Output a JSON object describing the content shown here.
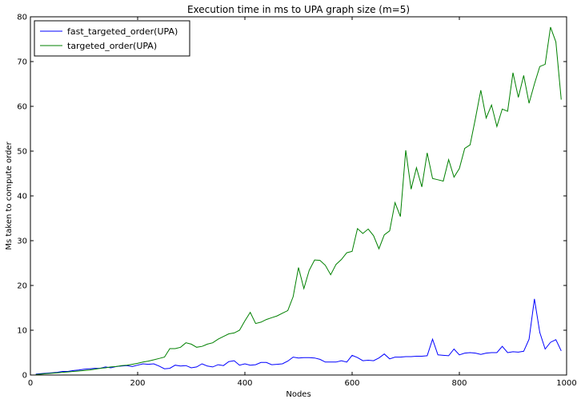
{
  "chart_data": {
    "type": "line",
    "title": "Execution time in ms to UPA graph size (m=5)",
    "xlabel": "Nodes",
    "ylabel": "Ms taken to compute order",
    "xlim": [
      0,
      1000
    ],
    "ylim": [
      0,
      80
    ],
    "xticks": [
      0,
      200,
      400,
      600,
      800,
      1000
    ],
    "yticks": [
      0,
      10,
      20,
      30,
      40,
      50,
      60,
      70,
      80
    ],
    "grid": false,
    "legend_position": "top-left",
    "x": [
      10,
      20,
      30,
      40,
      50,
      60,
      70,
      80,
      90,
      100,
      110,
      120,
      130,
      140,
      150,
      160,
      170,
      180,
      190,
      200,
      210,
      220,
      230,
      240,
      250,
      260,
      270,
      280,
      290,
      300,
      310,
      320,
      330,
      340,
      350,
      360,
      370,
      380,
      390,
      400,
      410,
      420,
      430,
      440,
      450,
      460,
      470,
      480,
      490,
      500,
      510,
      520,
      530,
      540,
      550,
      560,
      570,
      580,
      590,
      600,
      610,
      620,
      630,
      640,
      650,
      660,
      670,
      680,
      690,
      700,
      710,
      720,
      730,
      740,
      750,
      760,
      770,
      780,
      790,
      800,
      810,
      820,
      830,
      840,
      850,
      860,
      870,
      880,
      890,
      900,
      910,
      920,
      930,
      940,
      950,
      960,
      970,
      980,
      990
    ],
    "series": [
      {
        "name": "fast_targeted_order(UPA)",
        "color": "#0000ff",
        "values": [
          0.2,
          0.3,
          0.4,
          0.5,
          0.6,
          0.8,
          0.8,
          1.0,
          1.1,
          1.3,
          1.4,
          1.5,
          1.5,
          1.8,
          1.6,
          1.9,
          2.0,
          2.1,
          1.9,
          2.2,
          2.5,
          2.4,
          2.5,
          2.0,
          1.4,
          1.5,
          2.2,
          2.0,
          2.1,
          1.6,
          1.8,
          2.5,
          2.0,
          1.8,
          2.3,
          2.1,
          3.0,
          3.2,
          2.2,
          2.5,
          2.2,
          2.3,
          2.8,
          2.8,
          2.3,
          2.4,
          2.5,
          3.1,
          4.0,
          3.8,
          3.9,
          3.9,
          3.8,
          3.5,
          2.9,
          2.9,
          2.9,
          3.2,
          2.9,
          4.4,
          3.9,
          3.2,
          3.3,
          3.2,
          3.8,
          4.7,
          3.6,
          4.0,
          4.0,
          4.1,
          4.1,
          4.2,
          4.2,
          4.3,
          8.0,
          4.5,
          4.4,
          4.3,
          5.8,
          4.5,
          4.9,
          5.0,
          4.9,
          4.6,
          4.9,
          5.0,
          5.0,
          6.4,
          5.0,
          5.2,
          5.1,
          5.3,
          8.0,
          17.0,
          9.5,
          5.8,
          7.3,
          7.9,
          5.4
        ]
      },
      {
        "name": "targeted_order(UPA)",
        "color": "#008000",
        "values": [
          0.1,
          0.2,
          0.3,
          0.4,
          0.5,
          0.6,
          0.7,
          0.8,
          0.9,
          1.0,
          1.1,
          1.3,
          1.5,
          1.6,
          1.8,
          1.9,
          2.1,
          2.2,
          2.4,
          2.6,
          2.9,
          3.1,
          3.4,
          3.7,
          4.0,
          5.9,
          5.9,
          6.2,
          7.2,
          6.9,
          6.2,
          6.4,
          6.9,
          7.2,
          8.0,
          8.6,
          9.2,
          9.4,
          10.0,
          12.1,
          14.0,
          11.5,
          11.8,
          12.4,
          12.8,
          13.2,
          13.8,
          14.4,
          17.5,
          24.0,
          19.3,
          23.4,
          25.7,
          25.6,
          24.5,
          22.4,
          24.7,
          25.8,
          27.3,
          27.6,
          32.7,
          31.6,
          32.6,
          31.1,
          28.2,
          31.3,
          32.2,
          38.5,
          35.4,
          50.2,
          41.5,
          46.3,
          42.0,
          49.6,
          43.9,
          43.6,
          43.3,
          48.1,
          44.2,
          46.1,
          50.6,
          51.4,
          57.3,
          63.6,
          57.4,
          60.3,
          55.5,
          59.4,
          58.9,
          67.5,
          62.0,
          66.9,
          60.7,
          65.0,
          68.9,
          69.4,
          77.7,
          74.4,
          61.5
        ]
      }
    ]
  }
}
